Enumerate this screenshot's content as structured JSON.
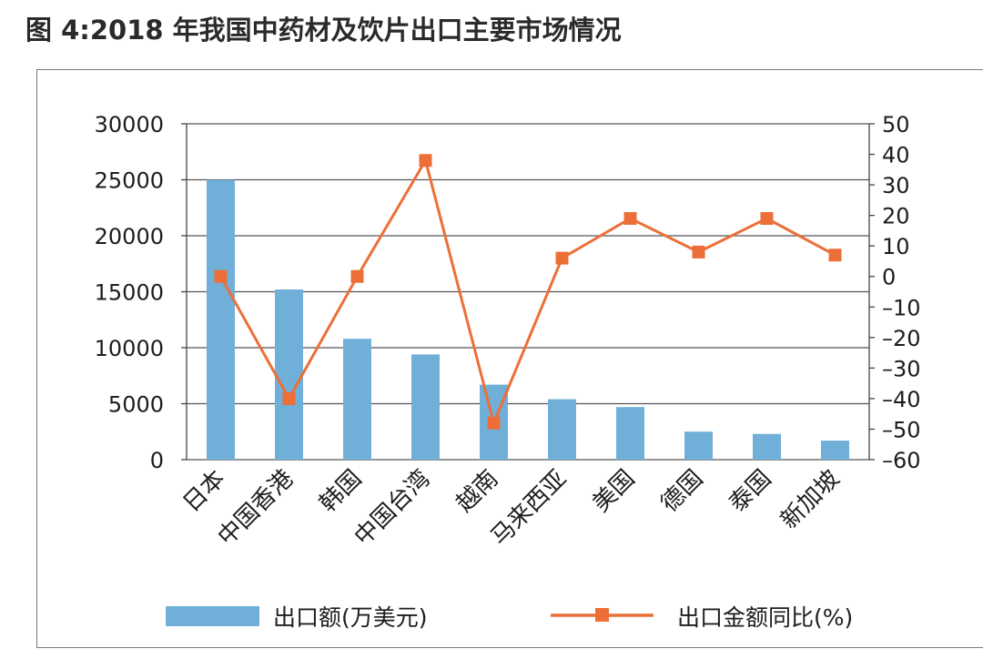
{
  "title": "图 4:2018 年我国中药材及饮片出口主要市场情况",
  "colors": {
    "bar": "#6fafd8",
    "line": "#ec6f38",
    "grid": "#555555",
    "axis": "#444444",
    "text": "#1d1d1d"
  },
  "chart_data": {
    "type": "bar",
    "categories": [
      "日本",
      "中国香港",
      "韩国",
      "中国台湾",
      "越南",
      "马来西亚",
      "美国",
      "德国",
      "泰国",
      "新加坡"
    ],
    "series": [
      {
        "name": "出口额(万美元)",
        "type": "bar",
        "axis": "left",
        "values": [
          25000,
          15200,
          10800,
          9400,
          6700,
          5400,
          4700,
          2500,
          2300,
          1700
        ]
      },
      {
        "name": "出口金额同比(%)",
        "type": "line",
        "axis": "right",
        "values": [
          0,
          -40,
          0,
          38,
          -48,
          6,
          19,
          8,
          19,
          7
        ]
      }
    ],
    "left_axis": {
      "min": 0,
      "max": 30000,
      "ticks": [
        0,
        5000,
        10000,
        15000,
        20000,
        25000,
        30000
      ]
    },
    "right_axis": {
      "min": -60,
      "max": 50,
      "ticks": [
        50,
        40,
        30,
        20,
        10,
        0,
        -10,
        -20,
        -30,
        -40,
        -50,
        -60
      ],
      "tick_labels": [
        "50",
        "40",
        "30",
        "20",
        "10",
        "0",
        "–10",
        "–20",
        "–30",
        "–40",
        "–50",
        "–60"
      ]
    },
    "grid": true,
    "legend": "bottom"
  }
}
